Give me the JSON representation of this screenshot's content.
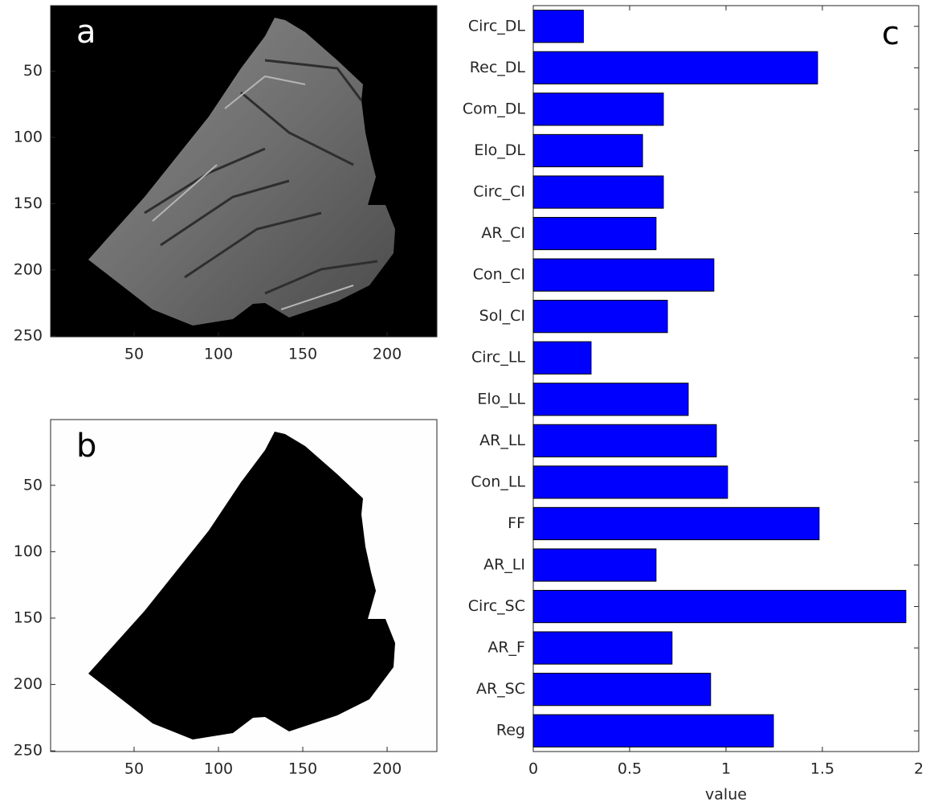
{
  "chart_data": [
    {
      "type": "image",
      "label": "a",
      "xlim": [
        0.5,
        229.5
      ],
      "xticks": [
        50,
        100,
        150,
        200
      ],
      "ylim": [
        0.5,
        250.5
      ],
      "yticks": [
        50,
        100,
        150,
        200,
        250
      ],
      "y_reversed": true
    },
    {
      "type": "image",
      "label": "b",
      "xlim": [
        0.5,
        229.5
      ],
      "xticks": [
        50,
        100,
        150,
        200
      ],
      "ylim": [
        0.5,
        250.5
      ],
      "yticks": [
        50,
        100,
        150,
        200,
        250
      ],
      "y_reversed": true
    },
    {
      "type": "bar",
      "orientation": "horizontal",
      "label": "c",
      "xlabel": "value",
      "color": "#0000ff",
      "categories": [
        "Circ_DL",
        "Rec_DL",
        "Com_DL",
        "Elo_DL",
        "Circ_CI",
        "AR_CI",
        "Con_CI",
        "Sol_CI",
        "Circ_LL",
        "Elo_LL",
        "AR_LL",
        "Con_LL",
        "FF",
        "AR_LI",
        "Circ_SC",
        "AR_F",
        "AR_SC",
        "Reg"
      ],
      "values": [
        0.26,
        1.475,
        0.675,
        0.567,
        0.675,
        0.637,
        0.937,
        0.696,
        0.3,
        0.804,
        0.95,
        1.008,
        1.483,
        0.637,
        1.933,
        0.72,
        0.92,
        1.246
      ],
      "xlim": [
        0,
        2
      ],
      "xticks": [
        0,
        0.5,
        1,
        1.5,
        2
      ]
    }
  ]
}
